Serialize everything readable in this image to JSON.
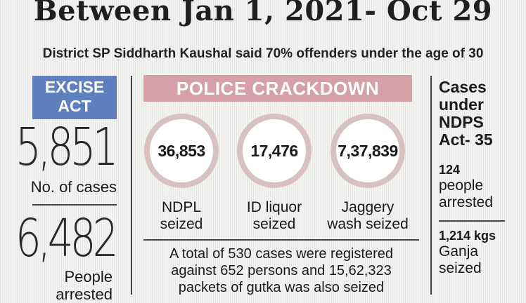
{
  "headline": "Between Jan 1, 2021- Oct 29",
  "subhead": "District SP Siddharth Kaushal said 70% offenders under the age of 30",
  "excise": {
    "title_line1": "EXCISE",
    "title_line2": "ACT",
    "cases_value": "5,851",
    "cases_label": "No. of cases",
    "arrested_value": "6,482",
    "arrested_label_line1": "People",
    "arrested_label_line2": "arrested"
  },
  "police": {
    "title": "POLICE CRACKDOWN",
    "items": [
      {
        "value": "36,853",
        "label_line1": "NDPL",
        "label_line2": "seized"
      },
      {
        "value": "17,476",
        "label_line1": "ID liquor",
        "label_line2": "seized"
      },
      {
        "value": "7,37,839",
        "label_line1": "Jaggery",
        "label_line2": "wash seized"
      }
    ],
    "summary_line1": "A total of 530 cases were registered",
    "summary_line2": "against 652 persons and 15,62,323",
    "summary_line3": "packets of gutka was also seized"
  },
  "ndps": {
    "title_line1": "Cases",
    "title_line2": "under",
    "title_line3": "NDPS",
    "title_line4": "Act- 35",
    "arrested_value": "124",
    "arrested_label_line1": "people",
    "arrested_label_line2": "arrested",
    "ganja_value": "1,214 kgs",
    "ganja_label_line1": "Ganja",
    "ganja_label_line2": "seized"
  },
  "colors": {
    "excise_box": "#5f7fbe",
    "police_box": "#d6a1a6",
    "circle_ring": "#d8c1c2"
  }
}
